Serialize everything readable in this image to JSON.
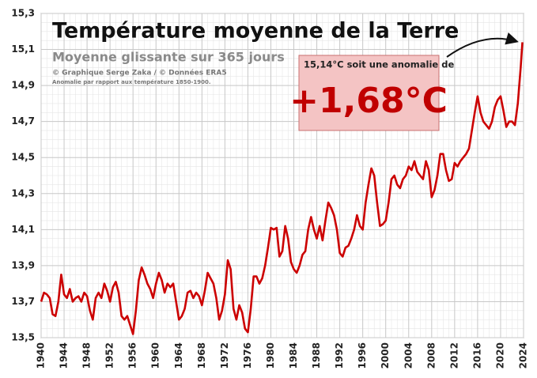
{
  "chart_data": {
    "type": "line",
    "title": "Température moyenne de la Terre",
    "subtitle": "Moyenne glissante sur 365 jours",
    "credits": "© Graphique Serge Zaka / © Données ERA5",
    "note": "Anomalie par rapport aux température 1850-1900.",
    "annotation_text": "15,14°C soit une anomalie de",
    "annotation_value": "+1,68°C",
    "color": "#cc0000",
    "grid": true,
    "xlim": [
      1940,
      2024
    ],
    "ylim": [
      13.5,
      15.3
    ],
    "xticks": [
      1940,
      1944,
      1948,
      1952,
      1956,
      1960,
      1964,
      1968,
      1972,
      1976,
      1980,
      1984,
      1988,
      1992,
      1996,
      2000,
      2004,
      2008,
      2012,
      2016,
      2020,
      2024
    ],
    "yticks": [
      {
        "value": 13.5,
        "label": "13,5"
      },
      {
        "value": 13.7,
        "label": "13,7"
      },
      {
        "value": 13.9,
        "label": "13,9"
      },
      {
        "value": 14.1,
        "label": "14,1"
      },
      {
        "value": 14.3,
        "label": "14,3"
      },
      {
        "value": 14.5,
        "label": "14,5"
      },
      {
        "value": 14.7,
        "label": "14,7"
      },
      {
        "value": 14.9,
        "label": "14,9"
      },
      {
        "value": 15.1,
        "label": "15,1"
      },
      {
        "value": 15.3,
        "label": "15,3"
      }
    ],
    "x": [
      1940,
      1940.5,
      1941,
      1941.5,
      1942,
      1942.5,
      1943,
      1943.5,
      1944,
      1944.5,
      1945,
      1945.5,
      1946,
      1946.5,
      1947,
      1947.5,
      1948,
      1948.5,
      1949,
      1949.5,
      1950,
      1950.5,
      1951,
      1951.5,
      1952,
      1952.5,
      1953,
      1953.5,
      1954,
      1954.5,
      1955,
      1955.5,
      1956,
      1956.5,
      1957,
      1957.5,
      1958,
      1958.5,
      1959,
      1959.5,
      1960,
      1960.5,
      1961,
      1961.5,
      1962,
      1962.5,
      1963,
      1963.5,
      1964,
      1964.5,
      1965,
      1965.5,
      1966,
      1966.5,
      1967,
      1967.5,
      1968,
      1968.5,
      1969,
      1969.5,
      1970,
      1970.5,
      1971,
      1971.5,
      1972,
      1972.5,
      1973,
      1973.5,
      1974,
      1974.5,
      1975,
      1975.5,
      1976,
      1976.5,
      1977,
      1977.5,
      1978,
      1978.5,
      1979,
      1979.5,
      1980,
      1980.5,
      1981,
      1981.5,
      1982,
      1982.5,
      1983,
      1983.5,
      1984,
      1984.5,
      1985,
      1985.5,
      1986,
      1986.5,
      1987,
      1987.5,
      1988,
      1988.5,
      1989,
      1989.5,
      1990,
      1990.5,
      1991,
      1991.5,
      1992,
      1992.5,
      1993,
      1993.5,
      1994,
      1994.5,
      1995,
      1995.5,
      1996,
      1996.5,
      1997,
      1997.5,
      1998,
      1998.5,
      1999,
      1999.5,
      2000,
      2000.5,
      2001,
      2001.5,
      2002,
      2002.5,
      2003,
      2003.5,
      2004,
      2004.5,
      2005,
      2005.5,
      2006,
      2006.5,
      2007,
      2007.5,
      2008,
      2008.5,
      2009,
      2009.5,
      2010,
      2010.5,
      2011,
      2011.5,
      2012,
      2012.5,
      2013,
      2013.5,
      2014,
      2014.5,
      2015,
      2015.5,
      2016,
      2016.5,
      2017,
      2017.5,
      2018,
      2018.5,
      2019,
      2019.5,
      2020,
      2020.5,
      2021,
      2021.5,
      2022,
      2022.5,
      2023,
      2023.5,
      2023.8
    ],
    "values": [
      13.7,
      13.75,
      13.74,
      13.72,
      13.63,
      13.62,
      13.7,
      13.85,
      13.74,
      13.72,
      13.77,
      13.7,
      13.72,
      13.73,
      13.7,
      13.75,
      13.73,
      13.65,
      13.6,
      13.72,
      13.75,
      13.72,
      13.8,
      13.76,
      13.7,
      13.78,
      13.81,
      13.75,
      13.62,
      13.6,
      13.62,
      13.57,
      13.52,
      13.65,
      13.82,
      13.89,
      13.85,
      13.8,
      13.77,
      13.72,
      13.8,
      13.86,
      13.82,
      13.75,
      13.8,
      13.78,
      13.8,
      13.7,
      13.6,
      13.62,
      13.66,
      13.75,
      13.76,
      13.72,
      13.75,
      13.73,
      13.68,
      13.76,
      13.86,
      13.83,
      13.8,
      13.72,
      13.6,
      13.65,
      13.74,
      13.93,
      13.88,
      13.66,
      13.6,
      13.68,
      13.64,
      13.55,
      13.53,
      13.66,
      13.84,
      13.84,
      13.8,
      13.83,
      13.9,
      14.0,
      14.11,
      14.1,
      14.11,
      13.95,
      13.98,
      14.12,
      14.05,
      13.92,
      13.88,
      13.86,
      13.9,
      13.96,
      13.98,
      14.1,
      14.17,
      14.1,
      14.05,
      14.12,
      14.04,
      14.15,
      14.25,
      14.22,
      14.18,
      14.1,
      13.97,
      13.95,
      14.0,
      14.01,
      14.05,
      14.1,
      14.18,
      14.12,
      14.1,
      14.25,
      14.35,
      14.44,
      14.4,
      14.25,
      14.12,
      14.13,
      14.15,
      14.25,
      14.38,
      14.4,
      14.35,
      14.33,
      14.38,
      14.4,
      14.45,
      14.43,
      14.48,
      14.42,
      14.4,
      14.38,
      14.48,
      14.43,
      14.28,
      14.32,
      14.4,
      14.52,
      14.52,
      14.43,
      14.37,
      14.38,
      14.47,
      14.45,
      14.48,
      14.5,
      14.52,
      14.55,
      14.65,
      14.75,
      14.84,
      14.75,
      14.7,
      14.68,
      14.66,
      14.7,
      14.78,
      14.82,
      14.84,
      14.76,
      14.67,
      14.7,
      14.7,
      14.68,
      14.8,
      15.0,
      15.14
    ]
  }
}
